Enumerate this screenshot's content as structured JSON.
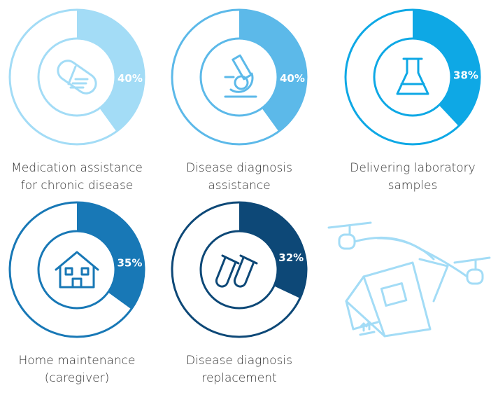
{
  "chart_data": [
    {
      "type": "donut",
      "title": "Medication assistance for chronic disease",
      "values": [
        40
      ],
      "value_labels": [
        "40%"
      ],
      "color": "#a3dcf6"
    },
    {
      "type": "donut",
      "title": "Disease diagnosis assistance",
      "values": [
        40
      ],
      "value_labels": [
        "40%"
      ],
      "color": "#5cb9e9"
    },
    {
      "type": "donut",
      "title": "Delivering laboratory samples",
      "values": [
        38
      ],
      "value_labels": [
        "38%"
      ],
      "color": "#0ea8e5"
    },
    {
      "type": "donut",
      "title": "Home maintenance (caregiver)",
      "values": [
        35
      ],
      "value_labels": [
        "35%"
      ],
      "color": "#1878b6"
    },
    {
      "type": "donut",
      "title": "Disease diagnosis replacement",
      "values": [
        32
      ],
      "value_labels": [
        "32%"
      ],
      "color": "#0d4877"
    }
  ]
}
